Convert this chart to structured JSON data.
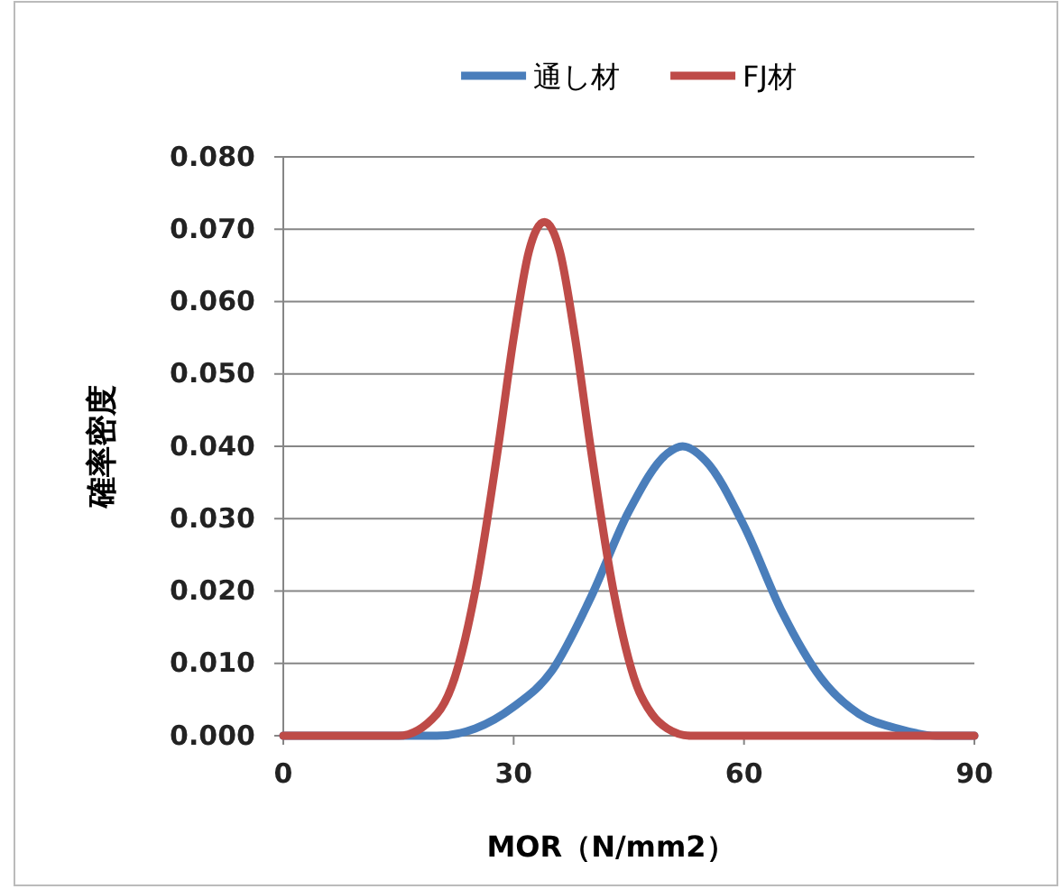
{
  "chart_data": {
    "type": "line",
    "xlabel": "MOR（N/mm2）",
    "ylabel": "確率密度",
    "xlim": [
      0,
      90
    ],
    "xticks": [
      0,
      30,
      60,
      90
    ],
    "ylim": [
      0,
      0.08
    ],
    "yticks": [
      {
        "value": 0,
        "label": "0.000"
      },
      {
        "value": 0.01,
        "label": "0.010"
      },
      {
        "value": 0.02,
        "label": "0.020"
      },
      {
        "value": 0.03,
        "label": "0.030"
      },
      {
        "value": 0.04,
        "label": "0.040"
      },
      {
        "value": 0.05,
        "label": "0.050"
      },
      {
        "value": 0.06,
        "label": "0.060"
      },
      {
        "value": 0.07,
        "label": "0.070"
      },
      {
        "value": 0.08,
        "label": "0.080"
      }
    ],
    "grid": "y",
    "legend": "top",
    "line_style": "solid",
    "marker": "none",
    "series": [
      {
        "name": "通し材",
        "color": "#4a7ebb",
        "x": [
          0,
          10,
          20,
          25,
          30,
          35,
          40,
          45,
          50,
          52,
          55,
          60,
          65,
          70,
          75,
          80,
          85,
          90
        ],
        "values": [
          0,
          0,
          0,
          0.001,
          0.004,
          0.009,
          0.019,
          0.031,
          0.039,
          0.04,
          0.038,
          0.029,
          0.017,
          0.008,
          0.003,
          0.001,
          0,
          0
        ]
      },
      {
        "name": "FJ材",
        "color": "#be4b48",
        "x": [
          0,
          10,
          15,
          20,
          22,
          25,
          28,
          30,
          32,
          34,
          36,
          38,
          40,
          43,
          46,
          48,
          50,
          53,
          60,
          70,
          90
        ],
        "values": [
          0,
          0,
          0,
          0.003,
          0.007,
          0.02,
          0.04,
          0.055,
          0.067,
          0.071,
          0.067,
          0.055,
          0.04,
          0.02,
          0.007,
          0.003,
          0.001,
          0,
          0,
          0,
          0
        ]
      }
    ]
  }
}
